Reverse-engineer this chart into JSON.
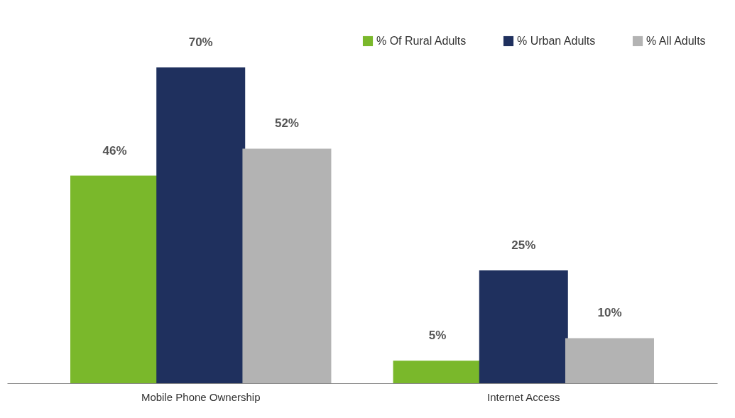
{
  "chart_data": {
    "type": "bar",
    "categories": [
      "Mobile Phone Ownership",
      "Internet Access"
    ],
    "series": [
      {
        "name": "% Of Rural Adults",
        "color": "#7ab82b",
        "values": [
          46,
          5
        ],
        "value_labels": [
          "46%",
          "5%"
        ]
      },
      {
        "name": "% Urban Adults",
        "color": "#1f305e",
        "values": [
          70,
          25
        ],
        "value_labels": [
          "70%",
          "25%"
        ]
      },
      {
        "name": "% All Adults",
        "color": "#b3b3b3",
        "values": [
          52,
          10
        ],
        "value_labels": [
          "52%",
          "10%"
        ]
      }
    ],
    "legend": "top right",
    "grid": false
  }
}
